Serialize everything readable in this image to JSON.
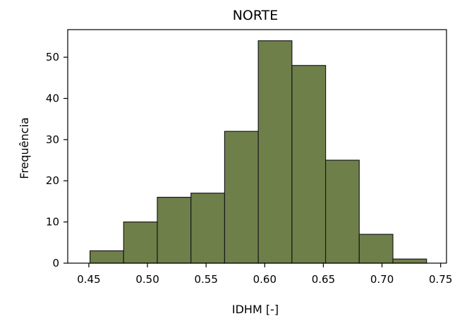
{
  "chart_data": {
    "type": "bar",
    "title": "NORTE",
    "xlabel": "IDHM [-]",
    "ylabel": "Frequência",
    "bin_edges": [
      0.451,
      0.4797,
      0.5084,
      0.5371,
      0.5658,
      0.5945,
      0.6232,
      0.6519,
      0.6806,
      0.7093,
      0.738
    ],
    "values": [
      3,
      10,
      16,
      17,
      32,
      54,
      48,
      25,
      7,
      1
    ],
    "xlim": [
      0.432,
      0.755
    ],
    "ylim": [
      0,
      56.7
    ],
    "xticks": [
      0.45,
      0.5,
      0.55,
      0.6,
      0.65,
      0.7,
      0.75
    ],
    "xtick_labels": [
      "0.45",
      "0.50",
      "0.55",
      "0.60",
      "0.65",
      "0.70",
      "0.75"
    ],
    "yticks": [
      0,
      10,
      20,
      30,
      40,
      50
    ],
    "ytick_labels": [
      "0",
      "10",
      "20",
      "30",
      "40",
      "50"
    ],
    "bar_color": "#6f7f4a",
    "edge_color": "#1a1a1a",
    "grid": false
  }
}
